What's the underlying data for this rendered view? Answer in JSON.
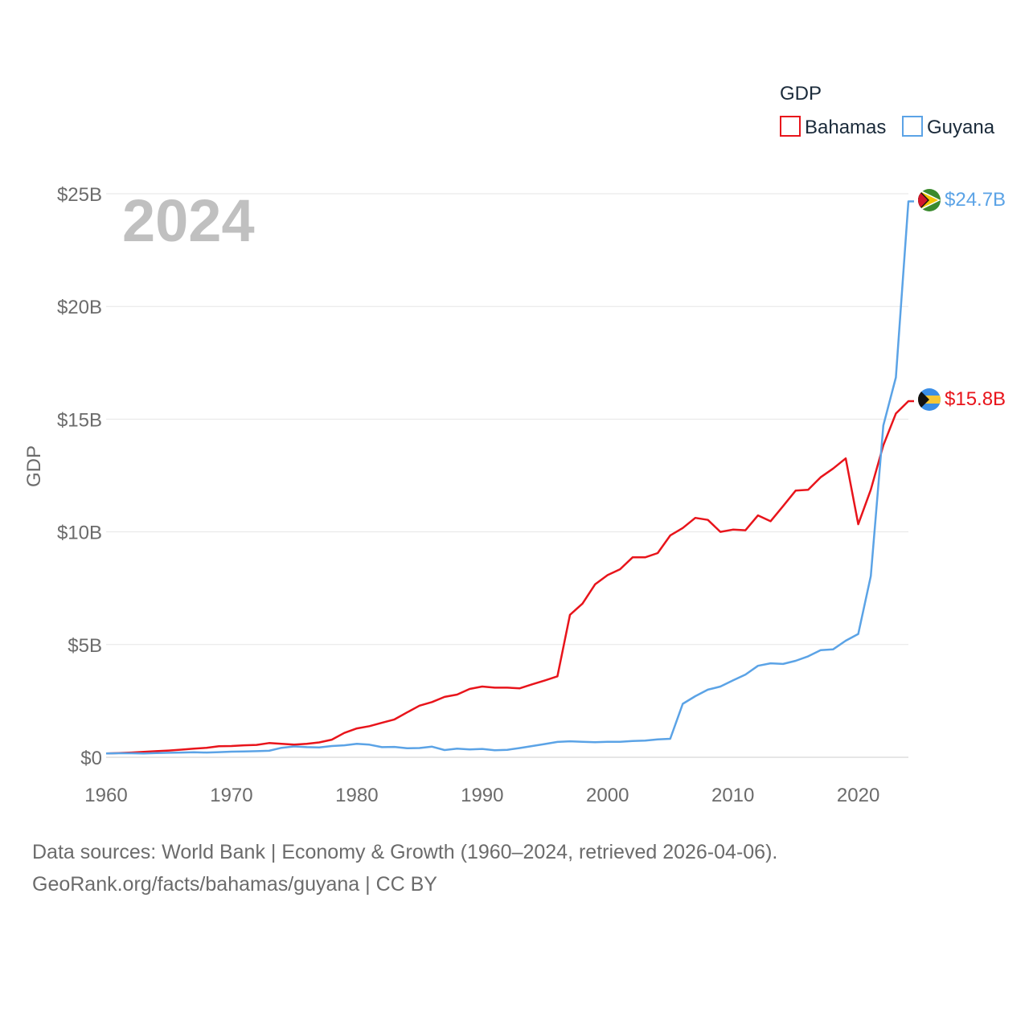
{
  "chart_data": {
    "type": "line",
    "ylabel": "GDP",
    "legend": {
      "title": "GDP",
      "placement": "top-right"
    },
    "year_label": "2024",
    "x": [
      1960,
      1961,
      1962,
      1963,
      1964,
      1965,
      1966,
      1967,
      1968,
      1969,
      1970,
      1971,
      1972,
      1973,
      1974,
      1975,
      1976,
      1977,
      1978,
      1979,
      1980,
      1981,
      1982,
      1983,
      1984,
      1985,
      1986,
      1987,
      1988,
      1989,
      1990,
      1991,
      1992,
      1993,
      1994,
      1995,
      1996,
      1997,
      1998,
      1999,
      2000,
      2001,
      2002,
      2003,
      2004,
      2005,
      2006,
      2007,
      2008,
      2009,
      2010,
      2011,
      2012,
      2013,
      2014,
      2015,
      2016,
      2017,
      2018,
      2019,
      2020,
      2021,
      2022,
      2023,
      2024
    ],
    "xlim": [
      1960,
      2024
    ],
    "ylim": [
      0,
      25
    ],
    "x_ticks": [
      {
        "value": 1960,
        "label": "1960"
      },
      {
        "value": 1970,
        "label": "1970"
      },
      {
        "value": 1980,
        "label": "1980"
      },
      {
        "value": 1990,
        "label": "1990"
      },
      {
        "value": 2000,
        "label": "2000"
      },
      {
        "value": 2010,
        "label": "2010"
      },
      {
        "value": 2020,
        "label": "2020"
      }
    ],
    "y_ticks": [
      {
        "value": 0,
        "label": "$0"
      },
      {
        "value": 5,
        "label": "$5B"
      },
      {
        "value": 10,
        "label": "$10B"
      },
      {
        "value": 15,
        "label": "$15B"
      },
      {
        "value": 20,
        "label": "$20B"
      },
      {
        "value": 25,
        "label": "$25B"
      }
    ],
    "series": [
      {
        "name": "Bahamas",
        "color": "#e8141b",
        "end_label": "$15.8B",
        "flag": "bahamas-flag",
        "values": [
          0.17,
          0.19,
          0.21,
          0.24,
          0.27,
          0.3,
          0.34,
          0.38,
          0.42,
          0.49,
          0.5,
          0.53,
          0.55,
          0.63,
          0.6,
          0.56,
          0.6,
          0.66,
          0.78,
          1.08,
          1.28,
          1.38,
          1.53,
          1.68,
          1.99,
          2.29,
          2.45,
          2.68,
          2.78,
          3.03,
          3.14,
          3.09,
          3.09,
          3.06,
          3.24,
          3.41,
          3.59,
          6.32,
          6.82,
          7.67,
          8.08,
          8.34,
          8.87,
          8.87,
          9.06,
          9.84,
          10.17,
          10.62,
          10.53,
          10.0,
          10.1,
          10.07,
          10.73,
          10.47,
          11.14,
          11.83,
          11.87,
          12.42,
          12.81,
          13.26,
          10.34,
          11.87,
          13.84,
          15.25,
          15.8
        ]
      },
      {
        "name": "Guyana",
        "color": "#5ba3e6",
        "end_label": "$24.7B",
        "flag": "guyana-flag",
        "values": [
          0.17,
          0.18,
          0.18,
          0.17,
          0.19,
          0.2,
          0.21,
          0.22,
          0.21,
          0.23,
          0.25,
          0.26,
          0.27,
          0.29,
          0.42,
          0.48,
          0.45,
          0.44,
          0.5,
          0.53,
          0.6,
          0.56,
          0.45,
          0.46,
          0.4,
          0.41,
          0.47,
          0.32,
          0.38,
          0.35,
          0.37,
          0.31,
          0.33,
          0.41,
          0.5,
          0.59,
          0.68,
          0.71,
          0.69,
          0.67,
          0.69,
          0.69,
          0.72,
          0.74,
          0.79,
          0.82,
          2.37,
          2.71,
          3.0,
          3.14,
          3.41,
          3.67,
          4.06,
          4.17,
          4.14,
          4.28,
          4.48,
          4.75,
          4.79,
          5.17,
          5.47,
          8.04,
          14.72,
          16.85,
          24.66
        ]
      }
    ]
  },
  "footer": {
    "line1": "Data sources: World Bank | Economy & Growth (1960–2024, retrieved 2026-04-06).",
    "line2": "GeoRank.org/facts/bahamas/guyana | CC BY"
  }
}
